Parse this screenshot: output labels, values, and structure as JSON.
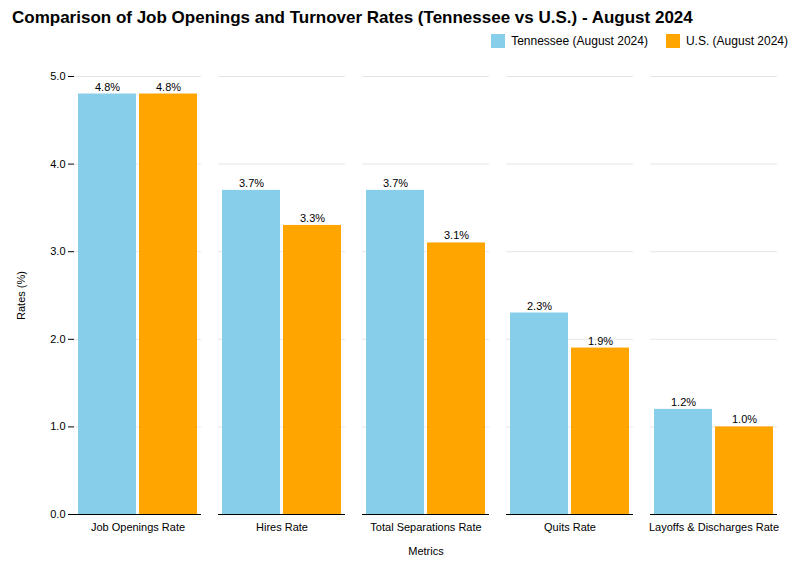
{
  "chart_data": {
    "type": "bar",
    "title": "Comparison of Job Openings and Turnover Rates (Tennessee vs U.S.) - August 2024",
    "xlabel": "Metrics",
    "ylabel": "Rates (%)",
    "categories": [
      "Job Openings Rate",
      "Hires Rate",
      "Total Separations Rate",
      "Quits Rate",
      "Layoffs & Discharges Rate"
    ],
    "series": [
      {
        "name": "Tennessee (August 2024)",
        "color": "#87CEEB",
        "values": [
          4.8,
          3.7,
          3.7,
          2.3,
          1.2
        ],
        "value_labels": [
          "4.8%",
          "3.7%",
          "3.7%",
          "2.3%",
          "1.2%"
        ]
      },
      {
        "name": "U.S. (August 2024)",
        "color": "#FFA500",
        "values": [
          4.8,
          3.3,
          3.1,
          1.9,
          1.0
        ],
        "value_labels": [
          "4.8%",
          "3.3%",
          "3.1%",
          "1.9%",
          "1.0%"
        ]
      }
    ],
    "ylim": [
      0,
      5
    ],
    "yticks": [
      0,
      1,
      2,
      3,
      4,
      5
    ],
    "grid": true,
    "legend": "upper right",
    "data_labels": true
  }
}
